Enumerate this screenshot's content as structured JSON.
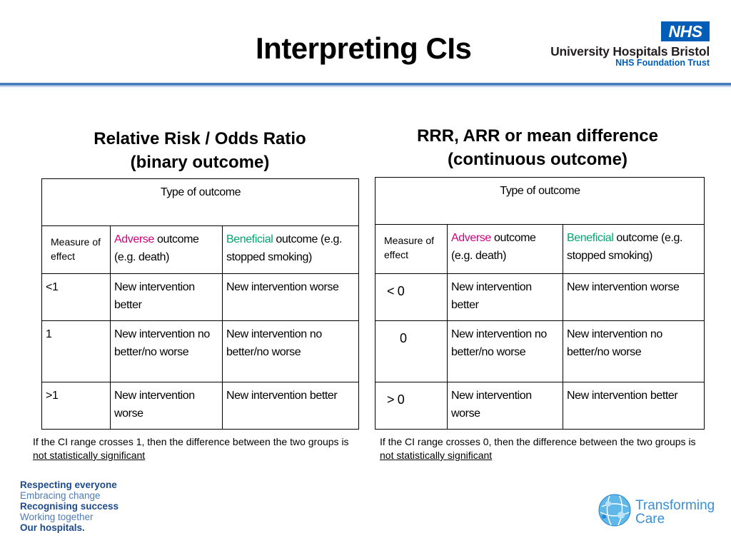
{
  "title": "Interpreting CIs",
  "nhs": {
    "badge": "NHS",
    "trust": "University Hospitals Bristol",
    "subtitle": "NHS Foundation Trust"
  },
  "left": {
    "heading_line1": "Relative Risk / Odds Ratio",
    "heading_line2": "(binary outcome)",
    "table": {
      "header": "Type of outcome",
      "measure_label": "Measure of effect",
      "adverse_word": "Adverse",
      "adverse_rest": " outcome (e.g. death)",
      "beneficial_word": "Beneficial",
      "beneficial_rest": " outcome (e.g. stopped smoking)",
      "rows": [
        {
          "measure": "<1",
          "adverse": "New intervention better",
          "beneficial": "New intervention worse"
        },
        {
          "measure": "1",
          "adverse": "New intervention no better/no worse",
          "beneficial": "New intervention no better/no worse"
        },
        {
          "measure": ">1",
          "adverse": "New intervention worse",
          "beneficial": "New intervention better"
        }
      ]
    },
    "note_pre": "If the CI range crosses 1, then the difference between the two groups is ",
    "note_u": "not statistically significant"
  },
  "right": {
    "heading_line1": "RRR, ARR or mean difference",
    "heading_line2": "(continuous outcome)",
    "table": {
      "header": "Type of outcome",
      "measure_label": "Measure of effect",
      "adverse_word": "Adverse",
      "adverse_rest": " outcome (e.g. death)",
      "beneficial_word": "Beneficial",
      "beneficial_rest": " outcome (e.g. stopped smoking)",
      "rows": [
        {
          "measure": "< 0",
          "adverse": "New intervention better",
          "beneficial": "New intervention worse"
        },
        {
          "measure": "0",
          "adverse": "New intervention no better/no worse",
          "beneficial": "New intervention no better/no worse"
        },
        {
          "measure": "> 0",
          "adverse": "New intervention worse",
          "beneficial": "New intervention better"
        }
      ]
    },
    "note_pre": "If the CI range crosses 0, then the difference between the two groups is ",
    "note_u": "not statistically significant"
  },
  "values": [
    "Respecting everyone",
    "Embracing change",
    "Recognising success",
    "Working together",
    "Our hospitals."
  ],
  "transforming": {
    "line1": "Transforming",
    "line2": "Care"
  },
  "colors": {
    "nhs_blue": "#005eb8",
    "adverse": "#d6007e",
    "beneficial": "#00a66e",
    "rule": "#4a7ebb"
  }
}
